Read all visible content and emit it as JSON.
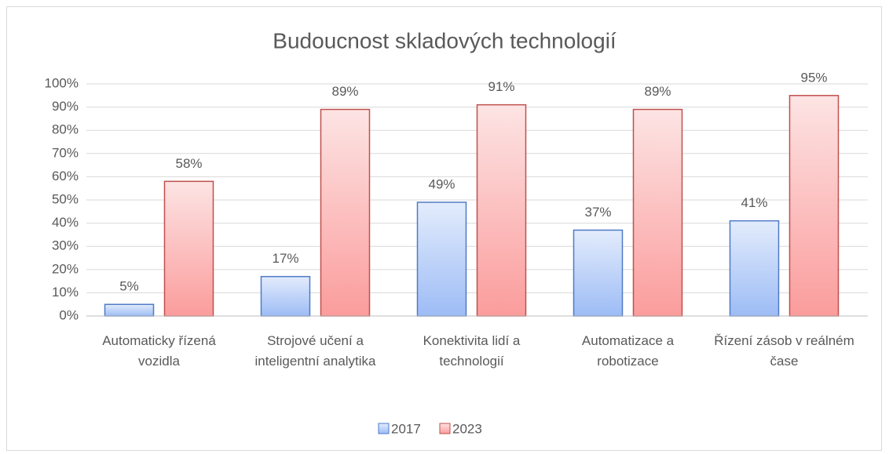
{
  "chart_data": {
    "type": "bar",
    "title": "Budoucnost skladových technologií",
    "categories": [
      "Automaticky řízená vozidla",
      "Strojové učení a inteligentní analytika",
      "Konektivita lidí a technologií",
      "Automatizace a robotizace",
      "Řízení zásob v reálném čase"
    ],
    "series": [
      {
        "name": "2017",
        "color": "#4f7ac7",
        "values": [
          5,
          17,
          49,
          37,
          41
        ],
        "value_labels": [
          "5%",
          "17%",
          "49%",
          "37%",
          "41%"
        ]
      },
      {
        "name": "2023",
        "color": "#c0504d",
        "values": [
          58,
          89,
          91,
          89,
          95
        ],
        "value_labels": [
          "58%",
          "89%",
          "91%",
          "89%",
          "95%"
        ]
      }
    ],
    "ylim": [
      0,
      100
    ],
    "yticks": [
      {
        "value": 0,
        "label": "0%"
      },
      {
        "value": 10,
        "label": "10%"
      },
      {
        "value": 20,
        "label": "20%"
      },
      {
        "value": 30,
        "label": "30%"
      },
      {
        "value": 40,
        "label": "40%"
      },
      {
        "value": 50,
        "label": "50%"
      },
      {
        "value": 60,
        "label": "60%"
      },
      {
        "value": 70,
        "label": "70%"
      },
      {
        "value": 80,
        "label": "80%"
      },
      {
        "value": 90,
        "label": "90%"
      },
      {
        "value": 100,
        "label": "100%"
      }
    ],
    "grid": true,
    "legend": "bottom"
  }
}
